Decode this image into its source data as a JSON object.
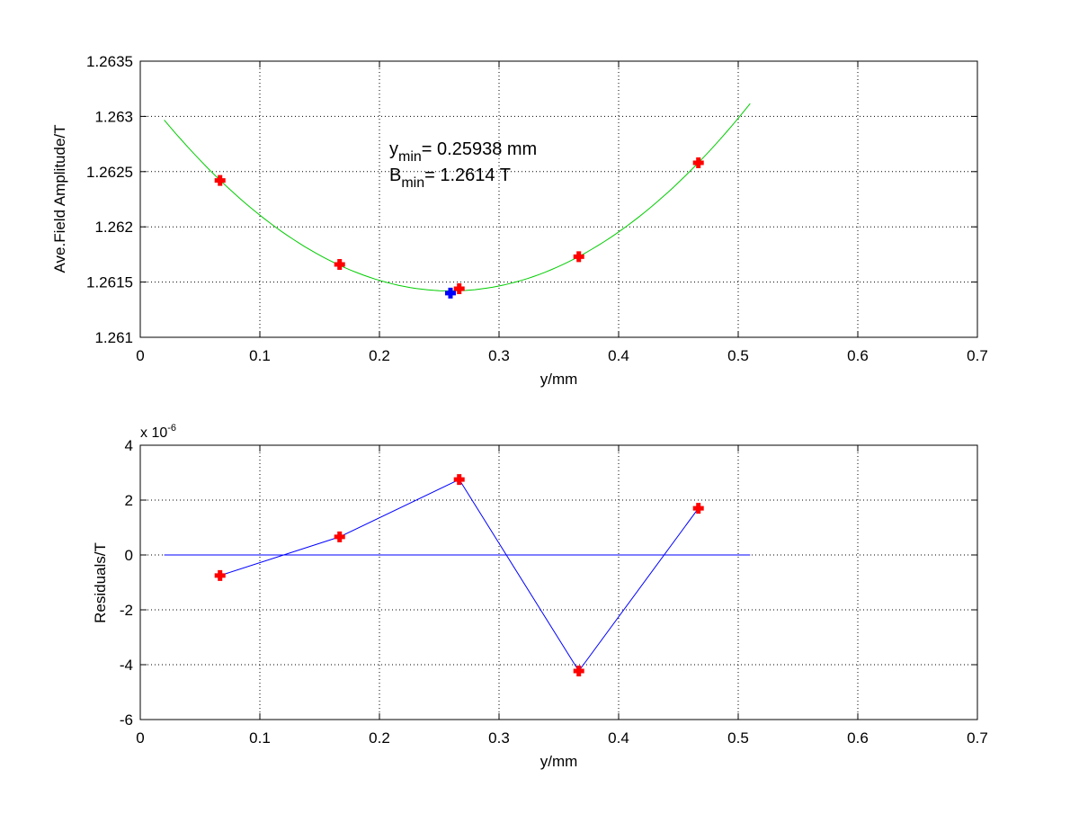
{
  "chart_data": [
    {
      "type": "scatter",
      "xlabel": "y/mm",
      "ylabel": "Ave.Field Amplitude/T",
      "xlim": [
        0,
        0.7
      ],
      "ylim": [
        1.261,
        1.2635
      ],
      "xticks": [
        "0",
        "0.1",
        "0.2",
        "0.3",
        "0.4",
        "0.5",
        "0.6",
        "0.7"
      ],
      "yticks": [
        "1.261",
        "1.2615",
        "1.262",
        "1.2625",
        "1.263",
        "1.2635"
      ],
      "grid": true,
      "points": {
        "x": [
          0.0667,
          0.1667,
          0.2667,
          0.3667,
          0.4667
        ],
        "y": [
          1.26242,
          1.26166,
          1.26144,
          1.26173,
          1.26258
        ],
        "color": "#ff0000",
        "marker": "plus"
      },
      "minimum": {
        "x": 0.25938,
        "y": 1.2614,
        "color": "#0000ff"
      },
      "fit": {
        "type": "quadratic",
        "x_range": [
          0.02,
          0.51
        ],
        "vertex_x": 0.25938,
        "vertex_y": 1.26142,
        "curvature": 0.027,
        "color": "#00cc00"
      },
      "annotation": {
        "line1_main": "y",
        "line1_sub": "min",
        "line1_rest": "= 0.25938 mm",
        "line2_main": "B",
        "line2_sub": "min",
        "line2_rest": "= 1.2614 T"
      }
    },
    {
      "type": "line",
      "xlabel": "y/mm",
      "ylabel": "Residuals/T",
      "xlim": [
        0,
        0.7
      ],
      "ylim": [
        -6,
        4
      ],
      "scale_label_main": "x 10",
      "scale_label_exp": "-6",
      "xticks": [
        "0",
        "0.1",
        "0.2",
        "0.3",
        "0.4",
        "0.5",
        "0.6",
        "0.7"
      ],
      "yticks": [
        "-6",
        "-4",
        "-2",
        "0",
        "2",
        "4"
      ],
      "grid": true,
      "series": {
        "x": [
          0.0667,
          0.1667,
          0.2667,
          0.3667,
          0.4667
        ],
        "y": [
          -0.75,
          0.66,
          2.75,
          -4.23,
          1.7
        ],
        "line_color": "#0000ff",
        "marker_color": "#ff0000"
      },
      "zero_line": {
        "x_range": [
          0.02,
          0.51
        ],
        "color": "#0000ff"
      }
    }
  ]
}
